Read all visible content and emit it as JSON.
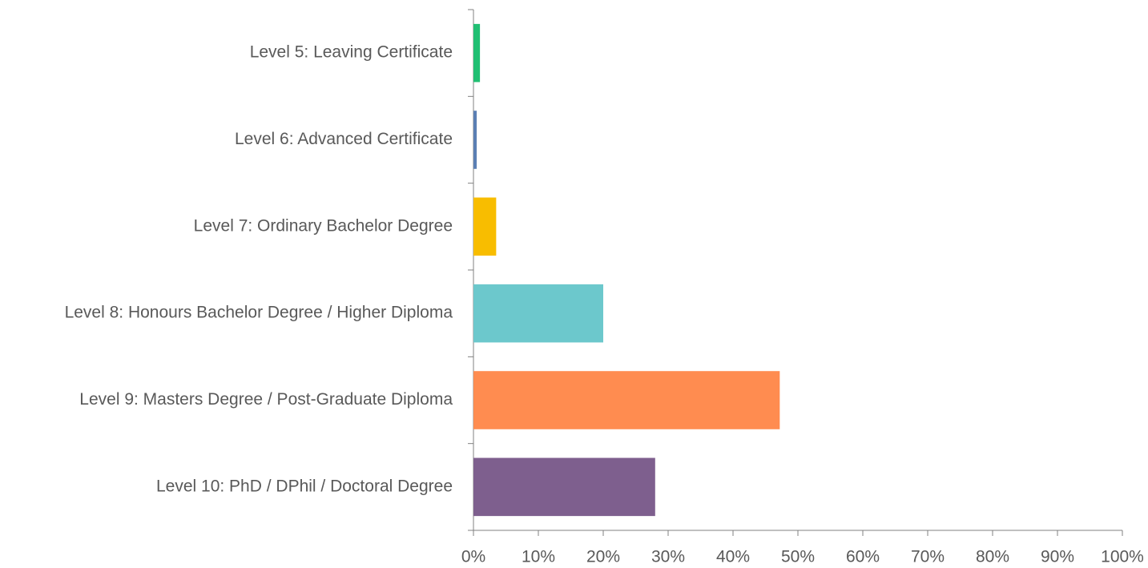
{
  "chart_data": {
    "type": "hbar",
    "categories": [
      "Level 5: Leaving Certificate",
      "Level 6: Advanced Certificate",
      "Level 7: Ordinary Bachelor Degree",
      "Level 8: Honours Bachelor Degree / Higher Diploma",
      "Level 9: Masters Degree / Post-Graduate Diploma",
      "Level 10: PhD / DPhil / Doctoral Degree"
    ],
    "values": [
      1.0,
      0.5,
      3.5,
      20.0,
      47.2,
      28.0
    ],
    "colors": [
      "#21bf73",
      "#5b7fb4",
      "#f8bd00",
      "#6cc8cc",
      "#ff8c50",
      "#7e5f8e"
    ],
    "xlim": [
      0,
      100
    ],
    "xticks": [
      {
        "value": 0,
        "label": "0%"
      },
      {
        "value": 10,
        "label": "10%"
      },
      {
        "value": 20,
        "label": "20%"
      },
      {
        "value": 30,
        "label": "30%"
      },
      {
        "value": 40,
        "label": "40%"
      },
      {
        "value": 50,
        "label": "50%"
      },
      {
        "value": 60,
        "label": "60%"
      },
      {
        "value": 70,
        "label": "70%"
      },
      {
        "value": 80,
        "label": "80%"
      },
      {
        "value": 90,
        "label": "90%"
      },
      {
        "value": 100,
        "label": "100%"
      }
    ],
    "grid": false
  }
}
